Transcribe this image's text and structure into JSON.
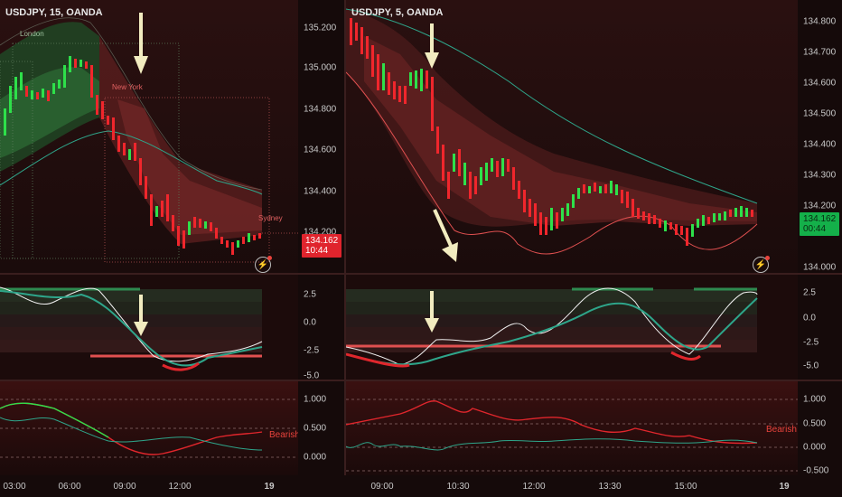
{
  "left": {
    "title": "USDJPY, 15, OANDA",
    "price_ticks": [
      "135.200",
      "135.000",
      "134.800",
      "134.600",
      "134.400",
      "134.200"
    ],
    "last_price": "134.162",
    "countdown": "10:44",
    "sessions": {
      "london": "London",
      "newyork": "New York",
      "sydney": "Sydney"
    },
    "osc_ticks": [
      "2.5",
      "0.0",
      "-2.5",
      "-5.0"
    ],
    "bottom_ticks": [
      "1.000",
      "0.500",
      "0.000"
    ],
    "bias_label": "Bearish",
    "time_ticks": [
      "03:00",
      "06:00",
      "09:00",
      "12:00",
      "19"
    ]
  },
  "right": {
    "title": "USDJPY, 5, OANDA",
    "price_ticks": [
      "134.800",
      "134.700",
      "134.600",
      "134.500",
      "134.400",
      "134.300",
      "134.200",
      "134.000"
    ],
    "last_price": "134.162",
    "countdown": "00:44",
    "osc_ticks": [
      "2.5",
      "0.0",
      "-2.5",
      "-5.0"
    ],
    "bottom_ticks": [
      "1.000",
      "0.500",
      "0.000",
      "-0.500"
    ],
    "bias_label": "Bearish",
    "time_ticks": [
      "09:00",
      "10:30",
      "12:00",
      "13:30",
      "15:00",
      "19"
    ]
  },
  "colors": {
    "bull_candle": "#2ee04a",
    "bear_candle": "#f0262c",
    "cloud_red": "#7a2a2a",
    "cloud_green": "#2e6e3a",
    "ema_teal": "#2ea58a",
    "arrow": "#f2ecc0"
  },
  "icons": {
    "alert": "lightning-icon"
  }
}
